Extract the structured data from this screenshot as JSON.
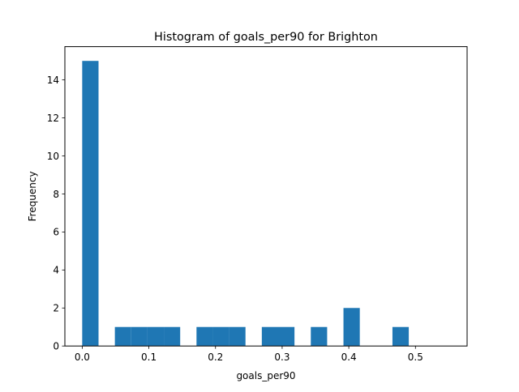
{
  "chart_data": {
    "type": "bar",
    "title": "Histogram of goals_per90 for Brighton",
    "xlabel": "goals_per90",
    "ylabel": "Frequency",
    "xlim": [
      -0.026,
      0.5775
    ],
    "ylim": [
      0,
      15.75
    ],
    "xticks": [
      0.0,
      0.1,
      0.2,
      0.3,
      0.4,
      0.5
    ],
    "xtick_labels": [
      "0.0",
      "0.1",
      "0.2",
      "0.3",
      "0.4",
      "0.5"
    ],
    "yticks": [
      0,
      2,
      4,
      6,
      8,
      10,
      12,
      14
    ],
    "ytick_labels": [
      "0",
      "2",
      "4",
      "6",
      "8",
      "10",
      "12",
      "14"
    ],
    "grid": false,
    "bar_color": "#1f77b4",
    "bins": [
      {
        "x0": 0.0,
        "x1": 0.0245,
        "count": 15
      },
      {
        "x0": 0.049,
        "x1": 0.0735,
        "count": 1
      },
      {
        "x0": 0.0735,
        "x1": 0.098,
        "count": 1
      },
      {
        "x0": 0.098,
        "x1": 0.1225,
        "count": 1
      },
      {
        "x0": 0.1225,
        "x1": 0.147,
        "count": 1
      },
      {
        "x0": 0.1715,
        "x1": 0.196,
        "count": 1
      },
      {
        "x0": 0.196,
        "x1": 0.2205,
        "count": 1
      },
      {
        "x0": 0.2205,
        "x1": 0.245,
        "count": 1
      },
      {
        "x0": 0.2695,
        "x1": 0.294,
        "count": 1
      },
      {
        "x0": 0.294,
        "x1": 0.3185,
        "count": 1
      },
      {
        "x0": 0.343,
        "x1": 0.3675,
        "count": 1
      },
      {
        "x0": 0.392,
        "x1": 0.4165,
        "count": 2
      },
      {
        "x0": 0.4655,
        "x1": 0.49,
        "count": 1
      }
    ]
  }
}
